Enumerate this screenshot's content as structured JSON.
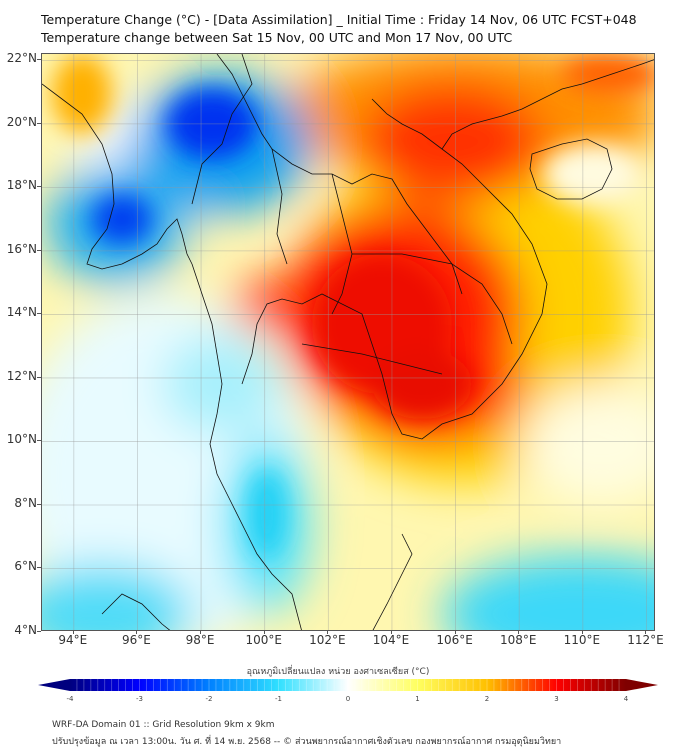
{
  "header": {
    "title_line1": "Temperature Change (°C) - [Data Assimilation] _ Initial Time : Friday 14 Nov, 06 UTC FCST+048",
    "title_line2": "Temperature change between Sat 15 Nov, 00 UTC and Mon 17 Nov, 00 UTC"
  },
  "map": {
    "lat_labels": [
      "22°N",
      "20°N",
      "18°N",
      "16°N",
      "14°N",
      "12°N",
      "10°N",
      "8°N",
      "6°N",
      "4°N"
    ],
    "lon_labels": [
      "94°E",
      "96°E",
      "98°E",
      "100°E",
      "102°E",
      "104°E",
      "106°E",
      "108°E",
      "110°E",
      "112°E"
    ],
    "lat_range": [
      4,
      22.2
    ],
    "lon_range": [
      93,
      112.3
    ],
    "field_blobs": [
      {
        "region": "central-vietnam-laos-cambodia warming",
        "lon": 104.5,
        "lat": 15.5,
        "value": 3.0
      },
      {
        "region": "northern-vietnam warming",
        "lon": 105.0,
        "lat": 20.5,
        "value": 2.8
      },
      {
        "region": "cambodia warming",
        "lon": 104.5,
        "lat": 12.0,
        "value": 3.0
      },
      {
        "region": "central-thailand warming",
        "lon": 100.5,
        "lat": 14.2,
        "value": 2.7
      },
      {
        "region": "myanmar cooling",
        "lon": 99.0,
        "lat": 20.5,
        "value": -2.8
      },
      {
        "region": "irrawaddy delta cooling",
        "lon": 95.8,
        "lat": 17.0,
        "value": -3.0
      },
      {
        "region": "southern-thailand cooling",
        "lon": 99.5,
        "lat": 8.0,
        "value": -1.4
      },
      {
        "region": "south china sea cooling",
        "lon": 110.0,
        "lat": 4.8,
        "value": -1.3
      }
    ]
  },
  "colorbar": {
    "title": "อุณหภูมิเปลี่ยนแปลง หน่วย องศาเซลเซียส (°C)",
    "ticks": [
      "-4",
      "-3",
      "-2",
      "-1",
      "0",
      "1",
      "2",
      "3",
      "4"
    ],
    "min": -4,
    "max": 4,
    "colors": [
      "#00007f",
      "#0000ff",
      "#0080ff",
      "#30e0ff",
      "#ffffff",
      "#ffff60",
      "#ffc000",
      "#ff0000",
      "#7f0000"
    ]
  },
  "footer": {
    "line1": "WRF-DA Domain 01 :: Grid Resolution 9km x 9km",
    "line2": "ปรับปรุงข้อมูล ณ เวลา 13:00น. วัน ศ. ที่ 14 พ.ย. 2568 -- © ส่วนพยากรณ์อากาศเชิงตัวเลข กองพยากรณ์อากาศ กรมอุตุนิยมวิทยา"
  }
}
